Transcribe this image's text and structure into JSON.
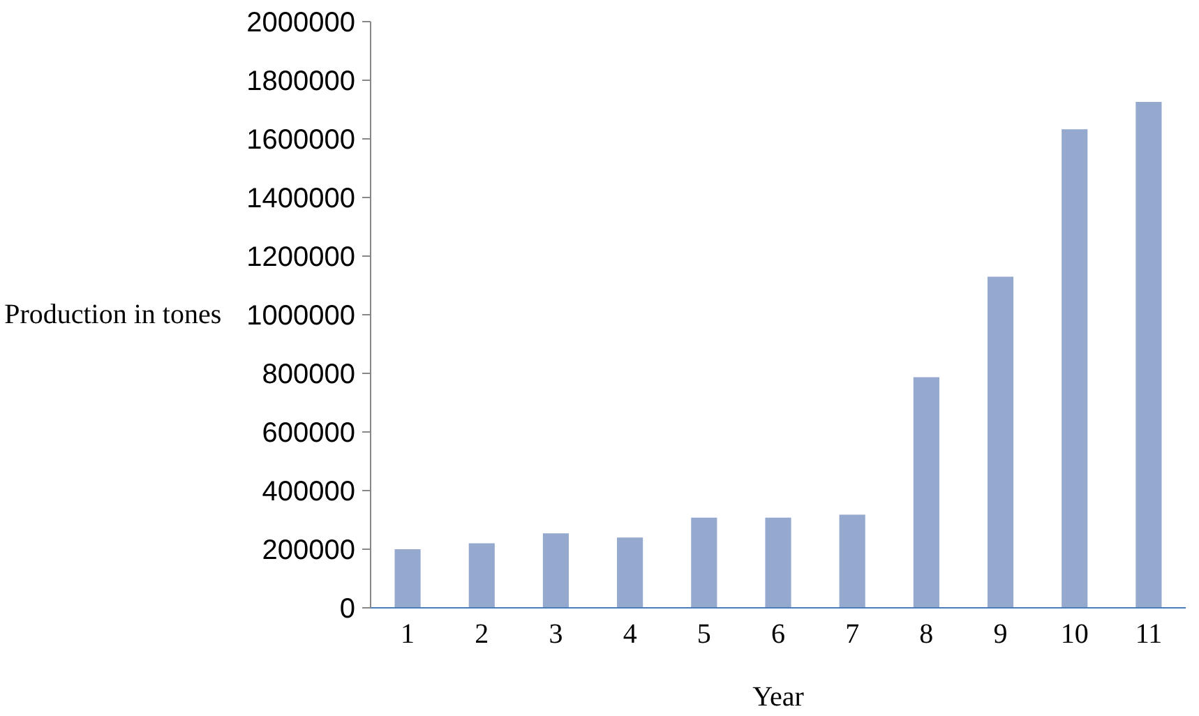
{
  "chart_data": {
    "type": "bar",
    "xlabel": "Year",
    "ylabel": "Production in tones",
    "categories": [
      "1",
      "2",
      "3",
      "4",
      "5",
      "6",
      "7",
      "8",
      "9",
      "10",
      "11"
    ],
    "values": [
      200000,
      220000,
      254000,
      240000,
      308000,
      308000,
      318000,
      787000,
      1130000,
      1633000,
      1726000
    ],
    "color": "#95a9cf",
    "ylim": [
      0,
      2000000
    ],
    "yticks": [
      0,
      200000,
      400000,
      600000,
      800000,
      1000000,
      1200000,
      1400000,
      1600000,
      1800000,
      2000000
    ],
    "grid": false
  }
}
